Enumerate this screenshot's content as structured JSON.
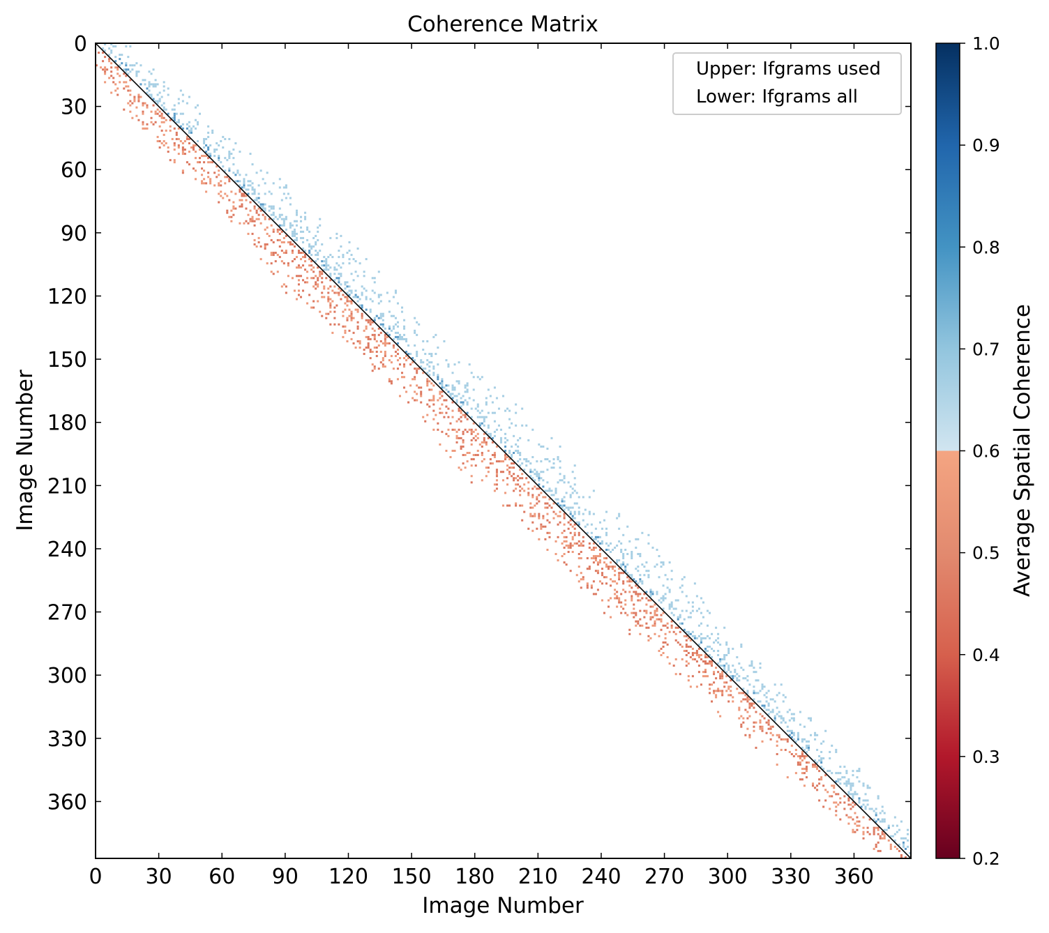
{
  "chart_data": {
    "type": "heatmap",
    "title": "Coherence Matrix",
    "xlabel": "Image Number",
    "ylabel": "Image Number",
    "n_images": 387,
    "xlim": [
      0,
      387
    ],
    "ylim": [
      387,
      0
    ],
    "x_ticks": [
      0,
      30,
      60,
      90,
      120,
      150,
      180,
      210,
      240,
      270,
      300,
      330,
      360
    ],
    "y_ticks": [
      0,
      30,
      60,
      90,
      120,
      150,
      180,
      210,
      240,
      270,
      300,
      330,
      360
    ],
    "legend": {
      "placement": "top-right",
      "entries": [
        "Upper: Ifgrams used",
        "Lower: Ifgrams all"
      ]
    },
    "colorbar": {
      "label": "Average Spatial Coherence",
      "range": [
        0.2,
        1.0
      ],
      "ticks": [
        "0.2",
        "0.3",
        "0.4",
        "0.5",
        "0.6",
        "0.7",
        "0.8",
        "0.9",
        "1.0"
      ],
      "colormap": "RdBu",
      "split_at": 0.7
    },
    "diagonal": {
      "value": 1.0,
      "color": "#000000"
    },
    "band": {
      "description_values": {
        "used_coherence_range": [
          0.7,
          0.85
        ],
        "unused_coherence_range": [
          0.55,
          0.68
        ]
      },
      "half_width_images": [
        16,
        20,
        22,
        28,
        25,
        25,
        30,
        26,
        30,
        26,
        22,
        20,
        15,
        10
      ],
      "centers": [
        0,
        30,
        60,
        90,
        120,
        150,
        180,
        210,
        240,
        270,
        300,
        330,
        360,
        386
      ]
    }
  },
  "colors": {
    "used": "#a7cfe4",
    "used_dark": "#5a9bc8",
    "unused": "#dc7860",
    "unused_light": "#ee9a7c",
    "diagonal": "#000000"
  }
}
